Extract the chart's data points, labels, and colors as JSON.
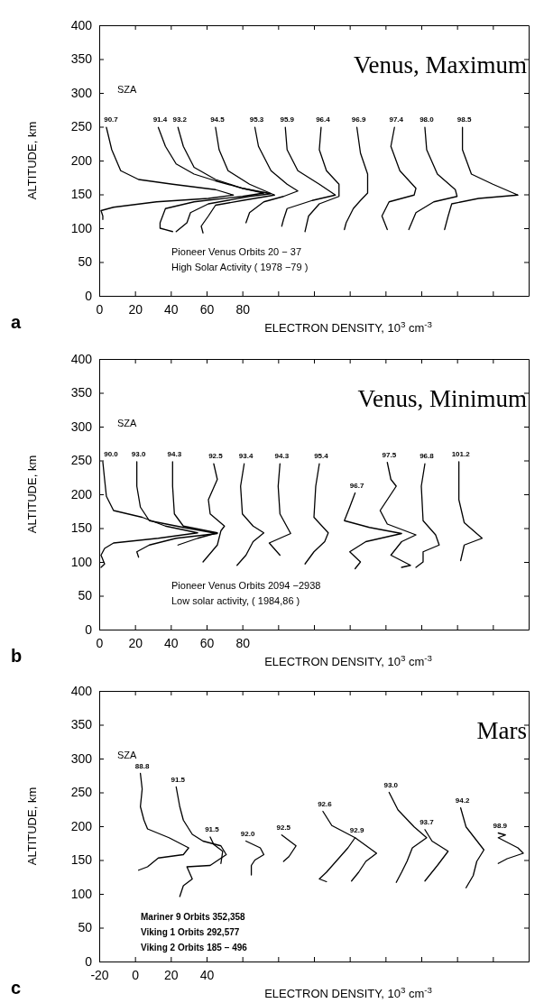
{
  "chart_data": [
    {
      "type": "line",
      "title": "Venus, Maximum",
      "subtitle": "a",
      "xlabel": "ELECTRON DENSITY, 10$^{3}$ cm$^{-3}$",
      "ylabel": "ALTITUDE, km",
      "line_style": "solid",
      "annotations": [
        "SZA",
        "Pioneer Venus Orbits 20 − 37",
        "High Solar Activity ( 1978 −79 )"
      ],
      "xlim": [
        0,
        240
      ],
      "xticks": [
        0,
        20,
        40,
        60,
        80,
        {
          "value": 100,
          "label": null
        },
        {
          "value": 120,
          "label": null
        },
        {
          "value": 140,
          "label": null
        },
        {
          "value": 160,
          "label": null
        },
        {
          "value": 180,
          "label": null
        },
        {
          "value": 200,
          "label": null
        },
        {
          "value": 220,
          "label": null
        }
      ],
      "ylim": [
        0,
        400
      ],
      "yticks": [
        0,
        50,
        100,
        150,
        200,
        250,
        300,
        350,
        400
      ],
      "series": [
        {
          "name": "90.7",
          "color": "#000000",
          "x": [
            4,
            7,
            12,
            22,
            41,
            65,
            75,
            61,
            32,
            8,
            1,
            2,
            2
          ],
          "values": [
            249,
            216,
            185,
            172,
            165,
            157,
            149,
            144,
            139,
            131,
            126,
            118,
            113
          ]
        },
        {
          "name": "91.4",
          "color": "#000000",
          "x": [
            33,
            37,
            43,
            53,
            65,
            80,
            92,
            80,
            53,
            37,
            34,
            34,
            41
          ],
          "values": [
            249,
            221,
            195,
            180,
            170,
            159,
            152,
            147,
            139,
            129,
            108,
            100,
            95
          ]
        },
        {
          "name": "93.2",
          "color": "#000000",
          "x": [
            44,
            47,
            53,
            65,
            80,
            96,
            84,
            61,
            51,
            49,
            43
          ],
          "values": [
            249,
            221,
            190,
            172,
            159,
            151,
            147,
            136,
            123,
            108,
            95
          ]
        },
        {
          "name": "94.5",
          "color": "#000000",
          "x": [
            65,
            67,
            72,
            84,
            98,
            80,
            65,
            61,
            57,
            58
          ],
          "values": [
            249,
            216,
            185,
            165,
            149,
            141,
            134,
            118,
            103,
            93
          ]
        },
        {
          "name": "95.3",
          "color": "#000000",
          "x": [
            87,
            89,
            96,
            105,
            111,
            103,
            92,
            84,
            82
          ],
          "values": [
            249,
            221,
            185,
            165,
            155,
            147,
            139,
            123,
            108
          ]
        },
        {
          "name": "95.9",
          "color": "#000000",
          "x": [
            104,
            105,
            111,
            123,
            132,
            119,
            105,
            103,
            102
          ],
          "values": [
            249,
            216,
            185,
            165,
            149,
            141,
            129,
            113,
            103
          ]
        },
        {
          "name": "96.4",
          "color": "#000000",
          "x": [
            124,
            123,
            127,
            134,
            134,
            123,
            117,
            115
          ],
          "values": [
            249,
            216,
            185,
            165,
            147,
            136,
            118,
            95
          ]
        },
        {
          "name": "96.9",
          "color": "#000000",
          "x": [
            144,
            146,
            150,
            150,
            146,
            142,
            138,
            137
          ],
          "values": [
            249,
            211,
            180,
            152,
            141,
            129,
            108,
            98
          ]
        },
        {
          "name": "97.4",
          "color": "#000000",
          "x": [
            165,
            163,
            168,
            177,
            176,
            162,
            158,
            161
          ],
          "values": [
            249,
            221,
            185,
            159,
            149,
            139,
            118,
            98
          ]
        },
        {
          "name": "98.0",
          "color": "#000000",
          "x": [
            182,
            183,
            189,
            199,
            200,
            187,
            177,
            173
          ],
          "values": [
            249,
            216,
            180,
            157,
            147,
            139,
            123,
            98
          ]
        },
        {
          "name": "98.5",
          "color": "#000000",
          "x": [
            203,
            203,
            208,
            220,
            234,
            212,
            197,
            195,
            193
          ],
          "values": [
            249,
            216,
            180,
            165,
            149,
            144,
            136,
            118,
            98
          ]
        }
      ]
    },
    {
      "type": "line",
      "title": "Venus, Minimum",
      "subtitle": "b",
      "xlabel": "ELECTRON DENSITY, 10$^{3}$ cm$^{-3}$",
      "ylabel": "ALTITUDE, km",
      "line_style": "solid",
      "annotations": [
        "SZA",
        "Pioneer Venus Orbits 2094 −2938",
        "Low solar activity, ( 1984,86 )"
      ],
      "xlim": [
        0,
        240
      ],
      "xticks": [
        0,
        20,
        40,
        60,
        80,
        {
          "value": 100,
          "label": null
        },
        {
          "value": 120,
          "label": null
        },
        {
          "value": 140,
          "label": null
        },
        {
          "value": 160,
          "label": null
        },
        {
          "value": 180,
          "label": null
        },
        {
          "value": 200,
          "label": null
        },
        {
          "value": 220,
          "label": null
        }
      ],
      "ylim": [
        0,
        400
      ],
      "yticks": [
        0,
        50,
        100,
        150,
        200,
        250,
        300,
        350,
        400
      ],
      "series": [
        {
          "name": "90.0",
          "color": "#000000",
          "x": [
            2,
            3,
            4,
            8,
            24,
            37,
            55,
            33,
            8,
            3,
            1,
            3,
            1
          ],
          "values": [
            248,
            222,
            197,
            176,
            166,
            153,
            143,
            135,
            128,
            120,
            110,
            97,
            92
          ]
        },
        {
          "name": "93.0",
          "color": "#000000",
          "x": [
            21,
            21,
            23,
            28,
            47,
            66,
            43,
            28,
            21,
            22
          ],
          "values": [
            248,
            212,
            181,
            161,
            151,
            142,
            135,
            125,
            115,
            107
          ]
        },
        {
          "name": "94.3",
          "color": "#000000",
          "x": [
            41,
            41,
            42,
            47,
            66,
            55,
            44
          ],
          "values": [
            248,
            212,
            171,
            153,
            143,
            135,
            125
          ]
        },
        {
          "name": "92.5",
          "color": "#000000",
          "x": [
            64,
            66,
            61,
            62,
            70,
            68,
            66,
            58
          ],
          "values": [
            245,
            222,
            192,
            171,
            153,
            146,
            125,
            100
          ]
        },
        {
          "name": "93.4",
          "color": "#000000",
          "x": [
            81,
            79,
            80,
            86,
            92,
            86,
            82,
            77
          ],
          "values": [
            245,
            212,
            171,
            153,
            143,
            130,
            110,
            95
          ]
        },
        {
          "name": "94.3",
          "color": "#000000",
          "x": [
            101,
            100,
            101,
            107,
            95,
            101
          ],
          "values": [
            245,
            212,
            171,
            142,
            128,
            110
          ]
        },
        {
          "name": "95.4",
          "color": "#000000",
          "x": [
            123,
            121,
            120,
            128,
            126,
            120,
            115
          ],
          "values": [
            245,
            212,
            166,
            143,
            130,
            115,
            97
          ]
        },
        {
          "name": "96.7",
          "color": "#000000",
          "x": [
            143,
            140,
            137,
            151,
            169,
            149,
            140,
            146,
            143
          ],
          "values": [
            202,
            181,
            161,
            151,
            142,
            130,
            115,
            100,
            90
          ]
        },
        {
          "name": "97.5",
          "color": "#000000",
          "x": [
            161,
            163,
            166,
            157,
            161,
            177,
            169,
            163,
            174,
            169
          ],
          "values": [
            247,
            222,
            212,
            176,
            156,
            140,
            130,
            110,
            95,
            92
          ]
        },
        {
          "name": "96.8",
          "color": "#000000",
          "x": [
            182,
            180,
            181,
            188,
            190,
            181,
            181,
            177
          ],
          "values": [
            245,
            212,
            161,
            140,
            125,
            115,
            100,
            92
          ]
        },
        {
          "name": "101.2",
          "color": "#000000",
          "x": [
            201,
            201,
            204,
            214,
            204,
            202
          ],
          "values": [
            248,
            192,
            158,
            135,
            125,
            102
          ]
        }
      ]
    },
    {
      "type": "line",
      "title": "Mars",
      "subtitle": "c",
      "xlabel": "ELECTRON DENSITY, 10$^{3}$ cm$^{-3}$",
      "ylabel": "ALTITUDE, km",
      "line_style": "solid",
      "annotations": [
        "SZA",
        "Mariner 9 Orbits 352,358",
        "Viking 1 Orbits 292,577",
        "Viking 2 Orbits 185 − 496"
      ],
      "xlim": [
        -20,
        220
      ],
      "xticks": [
        -20,
        0,
        20,
        40,
        {
          "value": 60,
          "label": null
        },
        {
          "value": 80,
          "label": null
        },
        {
          "value": 100,
          "label": null
        },
        {
          "value": 120,
          "label": null
        },
        {
          "value": 140,
          "label": null
        },
        {
          "value": 160,
          "label": null
        },
        {
          "value": 180,
          "label": null
        },
        {
          "value": 200,
          "label": null
        }
      ],
      "ylim": [
        0,
        400
      ],
      "yticks": [
        0,
        50,
        100,
        150,
        200,
        250,
        300,
        350,
        400
      ],
      "series": [
        {
          "name": "88.8",
          "color": "#000000",
          "x": [
            3,
            4,
            3,
            5,
            7,
            19,
            30,
            27,
            13,
            7,
            2
          ],
          "values": [
            278,
            255,
            229,
            209,
            196,
            183,
            168,
            158,
            153,
            140,
            135
          ]
        },
        {
          "name": "91.5",
          "color": "#000000",
          "x": [
            23,
            25,
            27,
            32,
            38,
            48,
            51,
            42,
            29,
            32,
            27,
            25
          ],
          "values": [
            258,
            229,
            209,
            188,
            178,
            171,
            158,
            142,
            140,
            122,
            112,
            96
          ]
        },
        {
          "name": "91.5",
          "color": "#000000",
          "x": [
            42,
            44,
            49,
            48
          ],
          "values": [
            184,
            173,
            163,
            145
          ]
        },
        {
          "name": "92.0",
          "color": "#000000",
          "x": [
            62,
            70,
            72,
            67,
            65,
            65
          ],
          "values": [
            178,
            168,
            158,
            150,
            142,
            128
          ]
        },
        {
          "name": "92.5",
          "color": "#000000",
          "x": [
            82,
            90,
            86,
            83
          ],
          "values": [
            187,
            171,
            155,
            148
          ]
        },
        {
          "name": "92.6",
          "color": "#000000",
          "x": [
            105,
            110,
            123,
            119,
            114,
            107,
            103,
            107
          ],
          "values": [
            222,
            201,
            183,
            168,
            153,
            132,
            122,
            118
          ]
        },
        {
          "name": "92.9",
          "color": "#000000",
          "x": [
            123,
            135,
            129,
            125,
            121
          ],
          "values": [
            183,
            160,
            148,
            132,
            119
          ]
        },
        {
          "name": "93.0",
          "color": "#000000",
          "x": [
            142,
            147,
            156,
            163,
            155,
            152,
            149,
            146
          ],
          "values": [
            250,
            224,
            199,
            183,
            168,
            148,
            132,
            117
          ]
        },
        {
          "name": "93.7",
          "color": "#000000",
          "x": [
            162,
            166,
            175,
            169,
            162
          ],
          "values": [
            195,
            178,
            163,
            142,
            119
          ]
        },
        {
          "name": "94.2",
          "color": "#000000",
          "x": [
            182,
            185,
            195,
            191,
            189,
            185
          ],
          "values": [
            227,
            199,
            165,
            148,
            127,
            109
          ]
        },
        {
          "name": "98.9",
          "color": "#000000",
          "x": [
            203,
            207,
            203,
            214,
            217,
            208,
            203
          ],
          "values": [
            190,
            187,
            183,
            168,
            160,
            152,
            145
          ]
        }
      ]
    }
  ]
}
